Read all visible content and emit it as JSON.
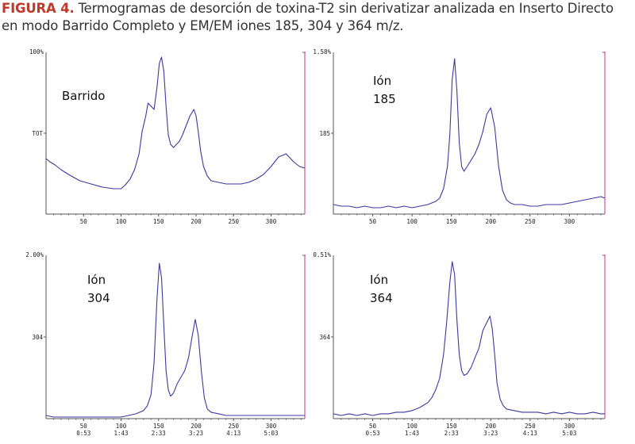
{
  "caption": {
    "label": "FIGURA 4.",
    "text": " Termogramas de desorción de toxina-T2 sin derivatizar analizada en Inserto Directo en modo Barrido Completo y EM/EM iones 185, 304 y 364 m/z."
  },
  "colors": {
    "trace": "#3a3aa0",
    "axis": "#555555",
    "right_axis": "#c23b8a",
    "caption_label": "#c0392b"
  },
  "chart_data": [
    {
      "type": "line",
      "label_lines": [
        "Barrido",
        ""
      ],
      "top_label": "100%",
      "mid_label": "TOT",
      "xlim": [
        0,
        345
      ],
      "ylim": [
        0,
        100
      ],
      "xticks": [
        50,
        100,
        150,
        200,
        250,
        300
      ],
      "time_ticks": [],
      "series": [
        {
          "x": [
            0,
            5,
            12,
            20,
            30,
            45,
            60,
            75,
            90,
            100,
            105,
            112,
            118,
            124,
            128,
            133,
            136,
            140,
            144,
            148,
            151,
            154,
            157,
            160,
            163,
            166,
            170,
            174,
            178,
            182,
            187,
            192,
            197,
            200,
            203,
            206,
            210,
            215,
            220,
            230,
            240,
            250,
            260,
            270,
            280,
            290,
            300,
            310,
            320,
            330,
            338,
            345
          ],
          "y": [
            35,
            33,
            31,
            28,
            25,
            21,
            19,
            17,
            16,
            16,
            18,
            22,
            28,
            38,
            52,
            62,
            70,
            68,
            66,
            80,
            95,
            99,
            90,
            68,
            50,
            44,
            42,
            44,
            46,
            50,
            56,
            62,
            66,
            62,
            52,
            40,
            30,
            24,
            21,
            20,
            19,
            19,
            19,
            20,
            22,
            25,
            30,
            36,
            38,
            33,
            30,
            29
          ]
        }
      ]
    },
    {
      "type": "line",
      "label_lines": [
        "Ión",
        "185"
      ],
      "top_label": "1.58%",
      "mid_label": "185",
      "xlim": [
        0,
        345
      ],
      "ylim": [
        0,
        100
      ],
      "xticks": [
        50,
        100,
        150,
        200,
        250,
        300
      ],
      "time_ticks": [],
      "series": [
        {
          "x": [
            0,
            10,
            20,
            30,
            40,
            50,
            60,
            70,
            80,
            90,
            100,
            110,
            120,
            130,
            135,
            140,
            145,
            148,
            151,
            154,
            157,
            160,
            163,
            166,
            170,
            175,
            180,
            185,
            190,
            195,
            200,
            205,
            210,
            215,
            220,
            225,
            230,
            240,
            250,
            260,
            270,
            280,
            290,
            300,
            310,
            320,
            330,
            340,
            345
          ],
          "y": [
            6,
            5,
            5,
            4,
            5,
            4,
            4,
            5,
            4,
            5,
            4,
            5,
            6,
            8,
            10,
            16,
            30,
            50,
            85,
            98,
            78,
            45,
            30,
            27,
            30,
            34,
            38,
            44,
            52,
            63,
            67,
            55,
            30,
            15,
            9,
            7,
            6,
            6,
            5,
            5,
            6,
            6,
            6,
            7,
            8,
            9,
            10,
            11,
            10
          ]
        }
      ]
    },
    {
      "type": "line",
      "label_lines": [
        "Ión",
        "304"
      ],
      "top_label": "2.00%",
      "mid_label": "304",
      "xlim": [
        0,
        345
      ],
      "ylim": [
        0,
        100
      ],
      "xticks": [
        50,
        100,
        150,
        200,
        250,
        300
      ],
      "time_ticks": [
        "0:53",
        "1:43",
        "2:33",
        "3:23",
        "4:13",
        "5:03"
      ],
      "series": [
        {
          "x": [
            0,
            10,
            20,
            30,
            40,
            50,
            60,
            70,
            80,
            90,
            100,
            110,
            120,
            125,
            130,
            135,
            140,
            144,
            148,
            151,
            154,
            157,
            160,
            163,
            166,
            170,
            175,
            180,
            185,
            190,
            195,
            199,
            203,
            207,
            211,
            215,
            220,
            230,
            240,
            250,
            260,
            270,
            280,
            290,
            300,
            310,
            320,
            330,
            340,
            345
          ],
          "y": [
            2,
            1,
            1,
            1,
            1,
            1,
            1,
            1,
            1,
            1,
            1,
            2,
            3,
            4,
            5,
            8,
            15,
            35,
            75,
            97,
            88,
            58,
            30,
            18,
            14,
            16,
            22,
            26,
            30,
            38,
            52,
            62,
            52,
            30,
            13,
            6,
            4,
            3,
            2,
            2,
            2,
            2,
            2,
            2,
            2,
            2,
            2,
            2,
            2,
            2
          ]
        }
      ]
    },
    {
      "type": "line",
      "label_lines": [
        "Ión",
        "364"
      ],
      "top_label": "0.51%",
      "mid_label": "364",
      "xlim": [
        0,
        345
      ],
      "ylim": [
        0,
        100
      ],
      "xticks": [
        50,
        100,
        150,
        200,
        250,
        300
      ],
      "time_ticks": [
        "0:53",
        "1:43",
        "2:33",
        "3:23",
        "4:13",
        "5:03"
      ],
      "series": [
        {
          "x": [
            0,
            10,
            20,
            30,
            40,
            50,
            60,
            70,
            80,
            90,
            100,
            110,
            120,
            125,
            130,
            135,
            140,
            144,
            148,
            151,
            154,
            157,
            160,
            163,
            166,
            170,
            175,
            180,
            185,
            190,
            195,
            199,
            202,
            205,
            208,
            212,
            216,
            220,
            230,
            240,
            250,
            260,
            270,
            280,
            290,
            300,
            310,
            320,
            330,
            340,
            345
          ],
          "y": [
            3,
            2,
            3,
            2,
            3,
            2,
            3,
            3,
            4,
            4,
            5,
            7,
            10,
            13,
            18,
            25,
            40,
            60,
            85,
            98,
            90,
            62,
            40,
            30,
            27,
            28,
            32,
            38,
            44,
            55,
            60,
            64,
            56,
            40,
            22,
            12,
            8,
            6,
            5,
            4,
            4,
            4,
            3,
            4,
            3,
            4,
            3,
            3,
            4,
            3,
            3
          ]
        }
      ]
    }
  ]
}
